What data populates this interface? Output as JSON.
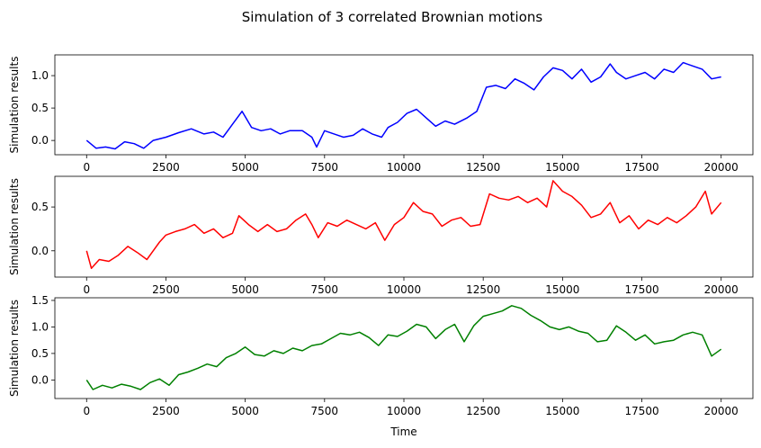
{
  "figure": {
    "title": "Simulation of 3 correlated Brownian motions"
  },
  "chart_data": [
    {
      "type": "line",
      "title": "",
      "xlabel": "",
      "ylabel": "Simulation results",
      "xlim": [
        -1000,
        21000
      ],
      "ylim": [
        -0.22,
        1.32
      ],
      "xticks": [
        0,
        2500,
        5000,
        7500,
        10000,
        12500,
        15000,
        17500,
        20000
      ],
      "yticks": [
        0.0,
        0.5,
        1.0
      ],
      "ytick_labels": [
        "0.0",
        "0.5",
        "1.0"
      ],
      "grid": false,
      "color": "#0000ff",
      "series": [
        {
          "x": [
            0,
            300,
            600,
            900,
            1200,
            1500,
            1800,
            2100,
            2500,
            2900,
            3300,
            3700,
            4000,
            4300,
            4600,
            4900,
            5200,
            5500,
            5800,
            6100,
            6400,
            6800,
            7100,
            7250,
            7500,
            7800,
            8100,
            8400,
            8700,
            9000,
            9300,
            9500,
            9800,
            10100,
            10400,
            10700,
            11000,
            11300,
            11600,
            12000,
            12300,
            12600,
            12900,
            13200,
            13500,
            13800,
            14100,
            14400,
            14700,
            15000,
            15300,
            15600,
            15900,
            16200,
            16500,
            16700,
            17000,
            17300,
            17600,
            17900,
            18200,
            18500,
            18800,
            19100,
            19400,
            19700,
            20000
          ],
          "values": [
            0.0,
            -0.12,
            -0.1,
            -0.13,
            -0.02,
            -0.05,
            -0.12,
            0.0,
            0.05,
            0.12,
            0.18,
            0.1,
            0.13,
            0.05,
            0.25,
            0.45,
            0.2,
            0.15,
            0.18,
            0.1,
            0.15,
            0.15,
            0.05,
            -0.1,
            0.15,
            0.1,
            0.05,
            0.08,
            0.18,
            0.1,
            0.05,
            0.2,
            0.28,
            0.42,
            0.48,
            0.35,
            0.22,
            0.3,
            0.25,
            0.35,
            0.45,
            0.82,
            0.85,
            0.8,
            0.95,
            0.88,
            0.78,
            0.98,
            1.12,
            1.08,
            0.95,
            1.1,
            0.9,
            0.98,
            1.18,
            1.05,
            0.95,
            1.0,
            1.05,
            0.95,
            1.1,
            1.05,
            1.2,
            1.15,
            1.1,
            0.95,
            0.98
          ]
        }
      ]
    },
    {
      "type": "line",
      "title": "",
      "xlabel": "",
      "ylabel": "Simulation results",
      "xlim": [
        -1000,
        21000
      ],
      "ylim": [
        -0.3,
        0.85
      ],
      "xticks": [
        0,
        2500,
        5000,
        7500,
        10000,
        12500,
        15000,
        17500,
        20000
      ],
      "yticks": [
        0.0,
        0.5
      ],
      "ytick_labels": [
        "0.0",
        "0.5"
      ],
      "grid": false,
      "color": "#ff0000",
      "series": [
        {
          "x": [
            0,
            150,
            400,
            700,
            1000,
            1300,
            1600,
            1900,
            2100,
            2300,
            2500,
            2800,
            3100,
            3400,
            3700,
            4000,
            4300,
            4600,
            4800,
            5100,
            5400,
            5700,
            6000,
            6300,
            6600,
            6900,
            7100,
            7300,
            7600,
            7900,
            8200,
            8500,
            8800,
            9100,
            9400,
            9700,
            10000,
            10300,
            10600,
            10900,
            11200,
            11500,
            11800,
            12100,
            12400,
            12700,
            13000,
            13300,
            13600,
            13900,
            14200,
            14500,
            14700,
            15000,
            15300,
            15600,
            15900,
            16200,
            16500,
            16800,
            17100,
            17400,
            17700,
            18000,
            18300,
            18600,
            18900,
            19200,
            19500,
            19700,
            20000
          ],
          "values": [
            0.0,
            -0.2,
            -0.1,
            -0.12,
            -0.05,
            0.05,
            -0.02,
            -0.1,
            0.0,
            0.1,
            0.18,
            0.22,
            0.25,
            0.3,
            0.2,
            0.25,
            0.15,
            0.2,
            0.4,
            0.3,
            0.22,
            0.3,
            0.22,
            0.25,
            0.35,
            0.42,
            0.3,
            0.15,
            0.32,
            0.28,
            0.35,
            0.3,
            0.25,
            0.32,
            0.12,
            0.3,
            0.38,
            0.55,
            0.45,
            0.42,
            0.28,
            0.35,
            0.38,
            0.28,
            0.3,
            0.65,
            0.6,
            0.58,
            0.62,
            0.55,
            0.6,
            0.5,
            0.8,
            0.68,
            0.62,
            0.52,
            0.38,
            0.42,
            0.55,
            0.32,
            0.4,
            0.25,
            0.35,
            0.3,
            0.38,
            0.32,
            0.4,
            0.5,
            0.68,
            0.42,
            0.55
          ]
        }
      ]
    },
    {
      "type": "line",
      "title": "",
      "xlabel": "Time",
      "ylabel": "Simulation results",
      "xlim": [
        -1000,
        21000
      ],
      "ylim": [
        -0.35,
        1.55
      ],
      "xticks": [
        0,
        2500,
        5000,
        7500,
        10000,
        12500,
        15000,
        17500,
        20000
      ],
      "yticks": [
        0.0,
        0.5,
        1.0,
        1.5
      ],
      "ytick_labels": [
        "0.0",
        "0.5",
        "1.0",
        "1.5"
      ],
      "grid": false,
      "color": "#008000",
      "series": [
        {
          "x": [
            0,
            200,
            500,
            800,
            1100,
            1400,
            1700,
            2000,
            2300,
            2600,
            2900,
            3200,
            3500,
            3800,
            4100,
            4400,
            4700,
            5000,
            5300,
            5600,
            5900,
            6200,
            6500,
            6800,
            7100,
            7400,
            7700,
            8000,
            8300,
            8600,
            8900,
            9200,
            9500,
            9800,
            10100,
            10400,
            10700,
            11000,
            11300,
            11600,
            11900,
            12200,
            12500,
            12800,
            13100,
            13400,
            13700,
            14000,
            14300,
            14600,
            14900,
            15200,
            15500,
            15800,
            16100,
            16400,
            16700,
            17000,
            17300,
            17600,
            17900,
            18200,
            18500,
            18800,
            19100,
            19400,
            19700,
            20000
          ],
          "values": [
            0.0,
            -0.18,
            -0.1,
            -0.15,
            -0.08,
            -0.12,
            -0.18,
            -0.05,
            0.02,
            -0.1,
            0.1,
            0.15,
            0.22,
            0.3,
            0.25,
            0.42,
            0.5,
            0.62,
            0.48,
            0.45,
            0.55,
            0.5,
            0.6,
            0.55,
            0.65,
            0.68,
            0.78,
            0.88,
            0.85,
            0.9,
            0.8,
            0.65,
            0.85,
            0.82,
            0.92,
            1.05,
            1.0,
            0.78,
            0.95,
            1.05,
            0.72,
            1.02,
            1.2,
            1.25,
            1.3,
            1.4,
            1.35,
            1.22,
            1.12,
            1.0,
            0.95,
            1.0,
            0.92,
            0.88,
            0.72,
            0.75,
            1.02,
            0.9,
            0.75,
            0.85,
            0.68,
            0.72,
            0.75,
            0.85,
            0.9,
            0.85,
            0.45,
            0.58
          ]
        }
      ]
    }
  ]
}
